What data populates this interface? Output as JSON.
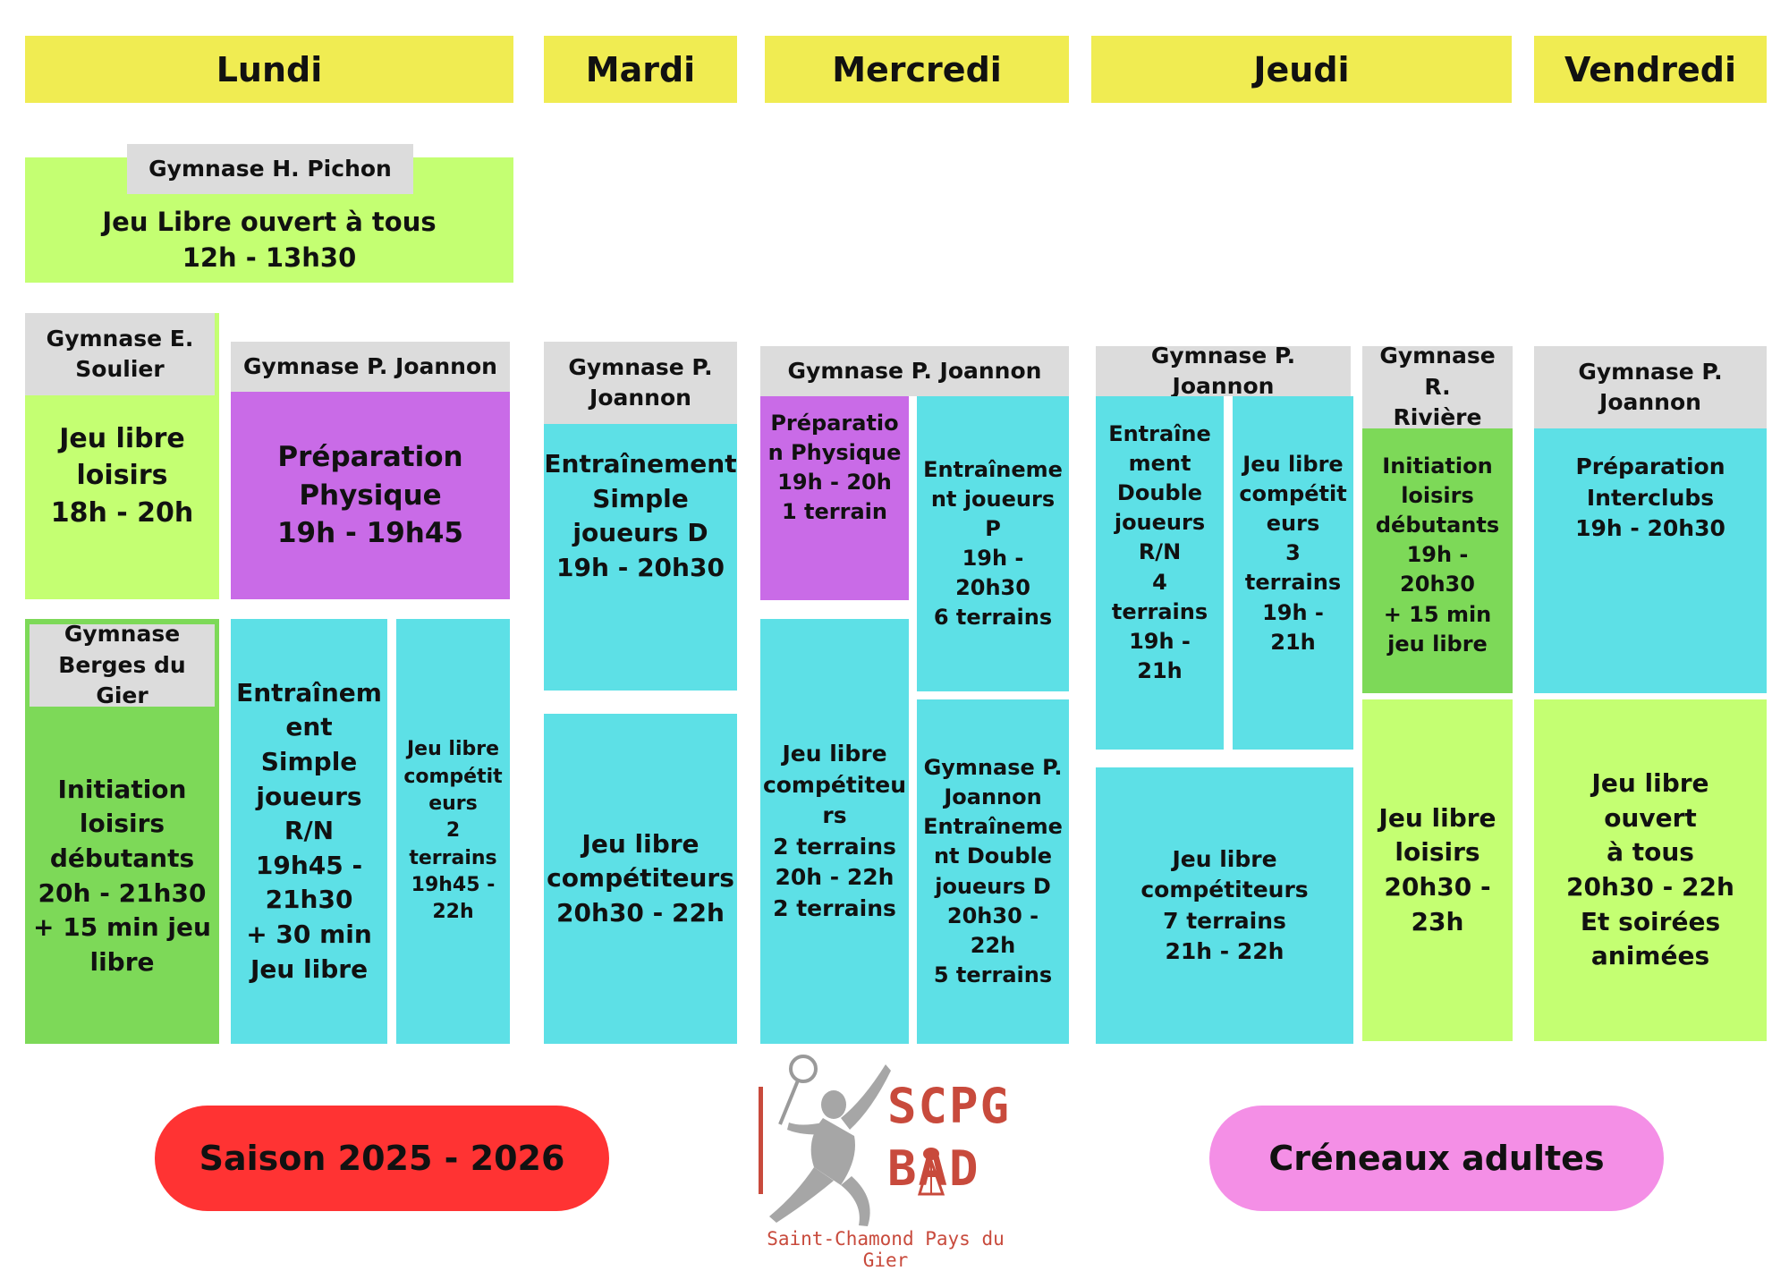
{
  "colors": {
    "day_header": "#f0ec52",
    "lime": "#c4ff72",
    "green": "#7dd958",
    "cyan": "#5de0e6",
    "purple": "#c96be7",
    "label_grey": "#dcdcdc",
    "season_pill": "#ff3333",
    "adult_pill": "#f48fe6",
    "logo_red": "#c84a3c"
  },
  "days": [
    "Lundi",
    "Mardi",
    "Mercredi",
    "Jeudi",
    "Vendredi"
  ],
  "lundi": {
    "midi": {
      "gym": "Gymnase H. Pichon",
      "text": "Jeu Libre ouvert à tous\n12h - 13h30"
    },
    "soulier": {
      "gym": "Gymnase E.\nSoulier",
      "text": "Jeu libre\nloisirs\n18h - 20h"
    },
    "joannon": {
      "gym": "Gymnase P. Joannon",
      "text": "Préparation\nPhysique\n19h - 19h45"
    },
    "berges": {
      "gym": "Gymnase\nBerges du Gier",
      "text": "Initiation\nloisirs\ndébutants\n20h - 21h30\n+ 15 min jeu\nlibre"
    },
    "simple": {
      "text": "Entraînem\nent Simple\njoueurs\nR/N\n19h45 -\n21h30\n+ 30 min\nJeu libre"
    },
    "libre": {
      "text": "Jeu libre\ncompétit\neurs\n2\nterrains\n19h45 -\n22h"
    }
  },
  "mardi": {
    "gym": "Gymnase P.\nJoannon",
    "simple": {
      "text": "Entraînement\nSimple\njoueurs D\n19h - 20h30"
    },
    "libre": {
      "text": "Jeu libre\ncompétiteurs\n20h30 - 22h"
    }
  },
  "mercredi": {
    "gym": "Gymnase P. Joannon",
    "prep": {
      "text": "Préparatio\nn Physique\n19h - 20h\n1 terrain"
    },
    "entr_p": {
      "text": "Entraîneme\nnt joueurs\nP\n19h - 20h30\n6 terrains"
    },
    "libre": {
      "text": "Jeu libre\ncompétiteu\nrs\n2 terrains\n20h - 22h\n2 terrains"
    },
    "double": {
      "text": "Gymnase P.\nJoannon\nEntraîneme\nnt Double\njoueurs D\n20h30 - 22h\n5 terrains"
    }
  },
  "jeudi": {
    "gym_joannon": "Gymnase P. Joannon",
    "double": {
      "text": "Entraîne\nment\nDouble\njoueurs\nR/N\n4 terrains\n19h - 21h"
    },
    "libre1": {
      "text": "Jeu libre\ncompétit\neurs\n3\nterrains\n19h - 21h"
    },
    "libre2": {
      "text": "Jeu libre\ncompétiteurs\n7 terrains\n21h - 22h"
    },
    "gym_riviere": "Gymnase R.\nRivière",
    "initiation": {
      "text": "Initiation\nloisirs\ndébutants\n19h - 20h30\n+ 15 min\njeu libre"
    },
    "loisirs": {
      "text": "Jeu libre\nloisirs\n20h30 -\n23h"
    }
  },
  "vendredi": {
    "gym": "Gymnase P.\nJoannon",
    "interclubs": {
      "text": "Préparation\nInterclubs\n19h - 20h30"
    },
    "ouvert": {
      "text": "Jeu libre ouvert\nà tous\n20h30 - 22h\nEt soirées\nanimées"
    }
  },
  "footer": {
    "season": "Saison 2025 - 2026",
    "category": "Créneaux adultes",
    "logo_line1": "SCPG",
    "logo_line2": "BAD",
    "logo_subtitle": "Saint-Chamond Pays du Gier"
  }
}
